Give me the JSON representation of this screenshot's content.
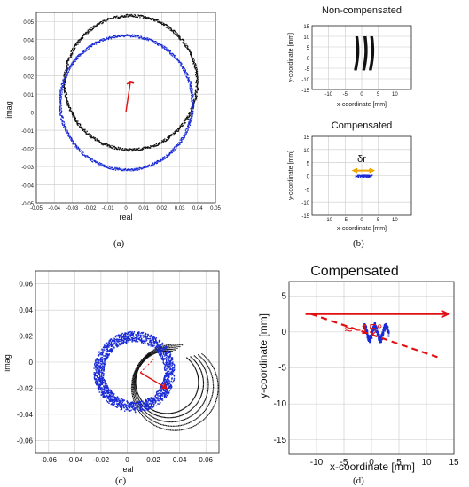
{
  "panel_labels": [
    "(a)",
    "(b)",
    "(c)",
    "(d)"
  ],
  "chart_data": [
    {
      "panel": "(a)",
      "type": "scatter",
      "xlabel": "real",
      "ylabel": "imag",
      "xlim": [
        -0.05,
        0.05
      ],
      "ylim": [
        -0.05,
        0.055
      ],
      "xticks": [
        "-0.05",
        "-0.04",
        "-0.03",
        "-0.02",
        "-0.01",
        "0",
        "0.01",
        "0.02",
        "0.03",
        "0.04",
        "0.05"
      ],
      "yticks": [
        "0.05",
        "0.04",
        "0.03",
        "0.02",
        "0.01",
        "0",
        "-0.01",
        "-0.02",
        "-0.03",
        "-0.04",
        "-0.05"
      ],
      "grid": true,
      "series": [
        {
          "color": "#111111",
          "shape": "circle",
          "center": [
            0.0025,
            0.0165
          ],
          "radius": 0.037,
          "jitter": 0.0007
        },
        {
          "color": "#1a2bd6",
          "shape": "circle",
          "center": [
            0.0,
            0.0055
          ],
          "radius": 0.037,
          "jitter": 0.0007
        }
      ],
      "vector": {
        "color": "#e01010",
        "from": [
          0.0,
          0.0
        ],
        "to": [
          0.0025,
          0.0165
        ]
      }
    },
    {
      "panel": "(b-top)",
      "type": "scatter",
      "title": "Non-compensated",
      "xlabel": "x-coordinate [mm]",
      "ylabel": "y-coordinate [mm]",
      "xlim": [
        -15,
        15
      ],
      "ylim": [
        -15,
        15
      ],
      "xticks": [
        "-10",
        "-5",
        "0",
        "5",
        "10"
      ],
      "yticks": [
        "15",
        "10",
        "5",
        "0",
        "-5",
        "-10",
        "-15"
      ],
      "grid": true,
      "series": [
        {
          "color": "#111111",
          "shape": "loops",
          "x_centers": [
            -1.5,
            1.0,
            3.0
          ],
          "y_range": [
            -6,
            10
          ]
        }
      ]
    },
    {
      "panel": "(b-bottom)",
      "type": "scatter",
      "title": "Compensated",
      "annotation": "δr",
      "xlabel": "x-coordinate [mm]",
      "ylabel": "y-coordinate [mm]",
      "xlim": [
        -15,
        15
      ],
      "ylim": [
        -15,
        15
      ],
      "xticks": [
        "-10",
        "-5",
        "0",
        "5",
        "10"
      ],
      "yticks": [
        "15",
        "10",
        "5",
        "0",
        "-5",
        "-10",
        "-15"
      ],
      "grid": true,
      "series": [
        {
          "color": "#1a2bd6",
          "shape": "band",
          "x_range": [
            -2,
            3
          ],
          "y": 0
        }
      ],
      "arrow": {
        "color": "#f0a500",
        "x_range": [
          -2.5,
          3.5
        ],
        "y": 2
      }
    },
    {
      "panel": "(c)",
      "type": "scatter",
      "xlabel": "real",
      "ylabel": "imag",
      "xlim": [
        -0.07,
        0.07
      ],
      "ylim": [
        -0.07,
        0.07
      ],
      "xticks": [
        "-0.06",
        "-0.04",
        "-0.02",
        "0",
        "0.02",
        "0.04",
        "0.06"
      ],
      "yticks": [
        "0.06",
        "0.04",
        "0.02",
        "0",
        "-0.02",
        "-0.04",
        "-0.06"
      ],
      "grid": true,
      "series": [
        {
          "color": "#111111",
          "shape": "spiral",
          "center": [
            0.03,
            -0.015
          ],
          "radius_range": [
            0.024,
            0.033
          ]
        },
        {
          "color": "#1a2bd6",
          "shape": "thick-circle",
          "center": [
            0.005,
            -0.007
          ],
          "radius": 0.027,
          "thickness": 0.008
        }
      ],
      "vector": {
        "color": "#e01010",
        "from": [
          0.01,
          -0.008
        ],
        "to": [
          0.03,
          -0.02
        ]
      }
    },
    {
      "panel": "(d)",
      "type": "scatter",
      "title": "Compensated",
      "annotation": "≈ -15°",
      "xlabel": "x-coordinate [mm]",
      "ylabel": "y-coordinate [mm]",
      "xlim": [
        -15,
        15
      ],
      "ylim": [
        -17,
        7
      ],
      "xticks": [
        "-10",
        "-5",
        "0",
        "5",
        "10",
        "15"
      ],
      "yticks": [
        "5",
        "0",
        "-5",
        "-10",
        "-15"
      ],
      "grid": true,
      "series": [
        {
          "color": "#1a2bd6",
          "shape": "band",
          "x_range": [
            -1.5,
            3.0
          ],
          "y": 0
        }
      ],
      "arrow": {
        "color": "#e01010",
        "x_range": [
          -12,
          14
        ],
        "y": 2.5
      },
      "dashed_line": {
        "color": "#e01010",
        "from": [
          -11,
          2.5
        ],
        "to": [
          12,
          -3.5
        ]
      }
    }
  ]
}
